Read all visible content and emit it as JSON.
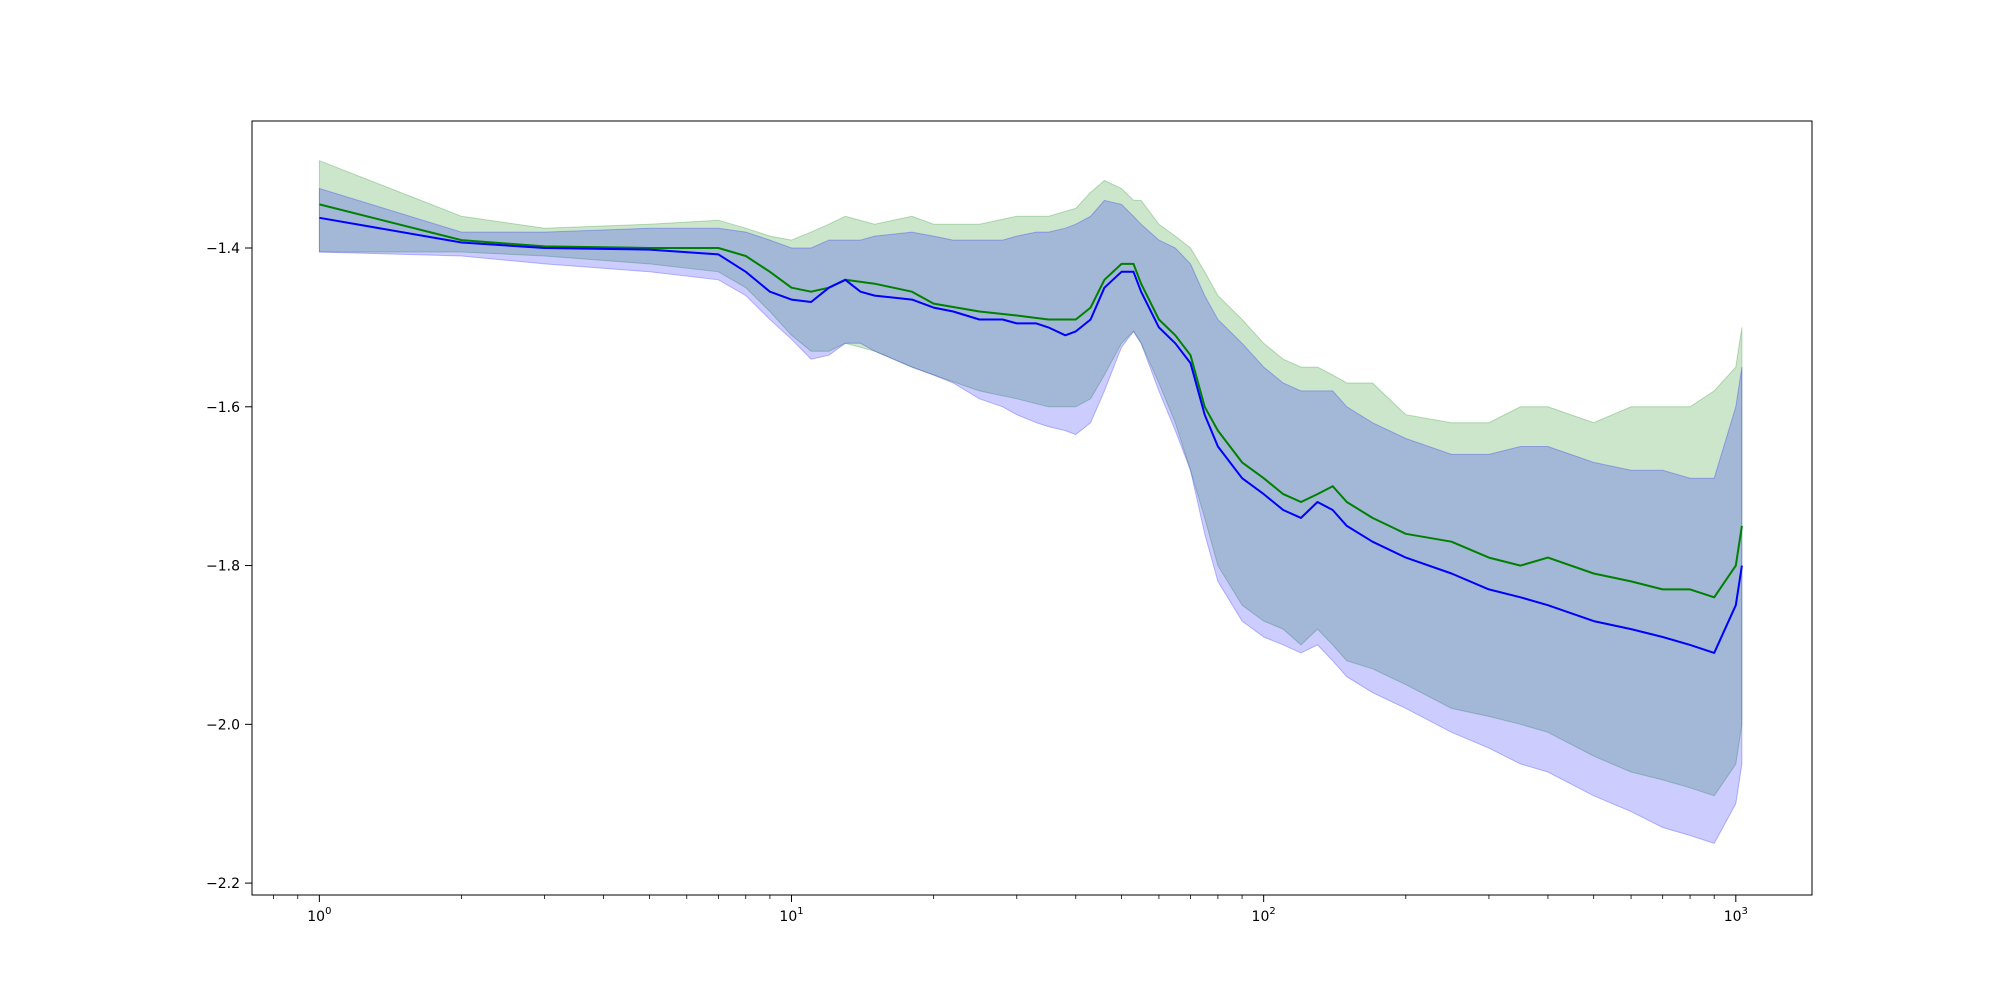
{
  "chart_data": {
    "type": "line",
    "title": "",
    "xlabel": "",
    "ylabel": "",
    "xscale": "log",
    "xlim": [
      0.72,
      1450
    ],
    "ylim": [
      -2.215,
      -1.24
    ],
    "grid": false,
    "legend": "none",
    "x_ticks": [
      {
        "value": 1,
        "base": "10",
        "exp": "0"
      },
      {
        "value": 10,
        "base": "10",
        "exp": "1"
      },
      {
        "value": 100,
        "base": "10",
        "exp": "2"
      },
      {
        "value": 1000,
        "base": "10",
        "exp": "3"
      }
    ],
    "y_ticks": [
      {
        "value": -1.4,
        "label": "−1.4"
      },
      {
        "value": -1.6,
        "label": "−1.6"
      },
      {
        "value": -1.8,
        "label": "−1.8"
      },
      {
        "value": -2.0,
        "label": "−2.0"
      },
      {
        "value": -2.2,
        "label": "−2.2"
      }
    ],
    "series": [
      {
        "color": "#008000",
        "band_color": "#008000",
        "x": [
          1,
          2,
          3,
          5,
          7,
          8,
          9,
          10,
          11,
          12,
          13,
          15,
          18,
          20,
          25,
          30,
          35,
          40,
          43,
          46,
          50,
          53,
          55,
          60,
          65,
          70,
          75,
          80,
          90,
          100,
          110,
          120,
          130,
          140,
          150,
          170,
          200,
          250,
          300,
          350,
          400,
          500,
          600,
          700,
          800,
          900,
          1000,
          1030
        ],
        "values": [
          -1.345,
          -1.39,
          -1.398,
          -1.4,
          -1.4,
          -1.41,
          -1.43,
          -1.45,
          -1.455,
          -1.45,
          -1.44,
          -1.445,
          -1.455,
          -1.47,
          -1.48,
          -1.485,
          -1.49,
          -1.49,
          -1.475,
          -1.44,
          -1.42,
          -1.42,
          -1.445,
          -1.49,
          -1.51,
          -1.535,
          -1.6,
          -1.63,
          -1.67,
          -1.69,
          -1.71,
          -1.72,
          -1.71,
          -1.7,
          -1.72,
          -1.74,
          -1.76,
          -1.77,
          -1.79,
          -1.8,
          -1.79,
          -1.81,
          -1.82,
          -1.83,
          -1.83,
          -1.84,
          -1.8,
          -1.75
        ],
        "upper": [
          -1.29,
          -1.36,
          -1.375,
          -1.37,
          -1.365,
          -1.375,
          -1.385,
          -1.39,
          -1.38,
          -1.37,
          -1.36,
          -1.37,
          -1.36,
          -1.37,
          -1.37,
          -1.36,
          -1.36,
          -1.35,
          -1.33,
          -1.315,
          -1.325,
          -1.34,
          -1.34,
          -1.37,
          -1.385,
          -1.4,
          -1.43,
          -1.46,
          -1.49,
          -1.52,
          -1.54,
          -1.55,
          -1.55,
          -1.56,
          -1.57,
          -1.57,
          -1.61,
          -1.62,
          -1.62,
          -1.6,
          -1.6,
          -1.62,
          -1.6,
          -1.6,
          -1.6,
          -1.58,
          -1.55,
          -1.5
        ],
        "lower": [
          -1.405,
          -1.405,
          -1.41,
          -1.42,
          -1.43,
          -1.45,
          -1.48,
          -1.51,
          -1.53,
          -1.53,
          -1.52,
          -1.53,
          -1.55,
          -1.56,
          -1.58,
          -1.59,
          -1.6,
          -1.6,
          -1.59,
          -1.56,
          -1.52,
          -1.505,
          -1.52,
          -1.57,
          -1.62,
          -1.68,
          -1.74,
          -1.8,
          -1.85,
          -1.87,
          -1.88,
          -1.9,
          -1.88,
          -1.9,
          -1.92,
          -1.93,
          -1.95,
          -1.98,
          -1.99,
          -2.0,
          -2.01,
          -2.04,
          -2.06,
          -2.07,
          -2.08,
          -2.09,
          -2.05,
          -2.0
        ]
      },
      {
        "color": "#0000ff",
        "band_color": "#0000ff",
        "x": [
          1,
          2,
          3,
          5,
          7,
          8,
          9,
          10,
          11,
          12,
          13,
          14,
          15,
          18,
          20,
          22,
          25,
          28,
          30,
          33,
          35,
          38,
          40,
          43,
          46,
          50,
          53,
          55,
          60,
          65,
          70,
          75,
          80,
          90,
          100,
          110,
          120,
          130,
          140,
          150,
          170,
          200,
          250,
          300,
          350,
          400,
          500,
          600,
          700,
          800,
          900,
          1000,
          1030
        ],
        "values": [
          -1.362,
          -1.393,
          -1.4,
          -1.402,
          -1.408,
          -1.43,
          -1.455,
          -1.465,
          -1.468,
          -1.45,
          -1.44,
          -1.455,
          -1.46,
          -1.465,
          -1.475,
          -1.48,
          -1.49,
          -1.49,
          -1.495,
          -1.495,
          -1.5,
          -1.51,
          -1.505,
          -1.49,
          -1.45,
          -1.43,
          -1.43,
          -1.455,
          -1.5,
          -1.52,
          -1.545,
          -1.61,
          -1.65,
          -1.69,
          -1.71,
          -1.73,
          -1.74,
          -1.72,
          -1.73,
          -1.75,
          -1.77,
          -1.79,
          -1.81,
          -1.83,
          -1.84,
          -1.85,
          -1.87,
          -1.88,
          -1.89,
          -1.9,
          -1.91,
          -1.85,
          -1.8
        ],
        "upper": [
          -1.325,
          -1.38,
          -1.38,
          -1.375,
          -1.375,
          -1.38,
          -1.39,
          -1.4,
          -1.4,
          -1.39,
          -1.39,
          -1.39,
          -1.385,
          -1.38,
          -1.385,
          -1.39,
          -1.39,
          -1.39,
          -1.385,
          -1.38,
          -1.38,
          -1.375,
          -1.37,
          -1.36,
          -1.34,
          -1.345,
          -1.36,
          -1.37,
          -1.39,
          -1.4,
          -1.42,
          -1.46,
          -1.49,
          -1.52,
          -1.55,
          -1.57,
          -1.58,
          -1.58,
          -1.58,
          -1.6,
          -1.62,
          -1.64,
          -1.66,
          -1.66,
          -1.65,
          -1.65,
          -1.67,
          -1.68,
          -1.68,
          -1.69,
          -1.69,
          -1.6,
          -1.55
        ],
        "lower": [
          -1.405,
          -1.41,
          -1.42,
          -1.43,
          -1.44,
          -1.46,
          -1.49,
          -1.515,
          -1.54,
          -1.535,
          -1.52,
          -1.52,
          -1.53,
          -1.55,
          -1.56,
          -1.57,
          -1.59,
          -1.6,
          -1.61,
          -1.62,
          -1.625,
          -1.63,
          -1.635,
          -1.62,
          -1.58,
          -1.525,
          -1.505,
          -1.52,
          -1.58,
          -1.63,
          -1.68,
          -1.76,
          -1.82,
          -1.87,
          -1.89,
          -1.9,
          -1.91,
          -1.9,
          -1.92,
          -1.94,
          -1.96,
          -1.98,
          -2.01,
          -2.03,
          -2.05,
          -2.06,
          -2.09,
          -2.11,
          -2.13,
          -2.14,
          -2.15,
          -2.1,
          -2.05
        ]
      }
    ]
  }
}
